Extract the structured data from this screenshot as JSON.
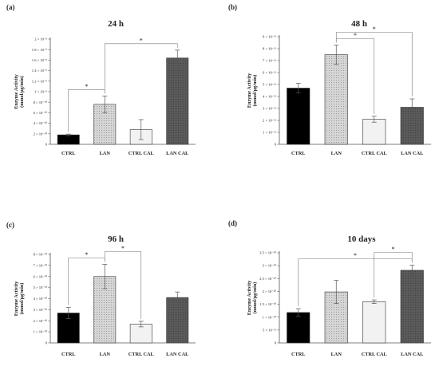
{
  "chart_data": [
    {
      "type": "bar",
      "panel_label": "(a)",
      "title": "24 h",
      "ylabel_line1": "Enzyme Activity",
      "ylabel_line2": "(mmol/µg/min)",
      "categories": [
        "CTRL",
        "LAN",
        "CTRL CAL",
        "LAN CAL"
      ],
      "values": [
        1.8e-10,
        7.6e-10,
        2.8e-10,
        1.64e-09
      ],
      "errors": [
        1.5e-11,
        1.6e-10,
        1.9e-10,
        1.5e-10
      ],
      "ylim": [
        0,
        2e-09
      ],
      "yticks": [
        0,
        2e-10,
        4e-10,
        6e-10,
        8e-10,
        1e-09,
        1.2e-09,
        1.4e-09,
        1.6e-09,
        1.8e-09,
        2e-09
      ],
      "ytick_labels": [
        "0",
        "2 × 10⁻¹⁰",
        "4 × 10⁻¹⁰",
        "6 × 10⁻¹⁰",
        "8 × 10⁻¹⁰",
        "1 × 10⁻⁹",
        "1.2 × 10⁻⁹",
        "1.4 × 10⁻⁹",
        "1.6 × 10⁻⁹",
        "1.8 × 10⁻⁹",
        "2 × 10⁻⁹"
      ],
      "significance": [
        {
          "from": 0,
          "to": 1,
          "label": "*"
        },
        {
          "from": 1,
          "to": 3,
          "label": "*"
        }
      ]
    },
    {
      "type": "bar",
      "panel_label": "(b)",
      "title": "48 h",
      "ylabel_line1": "Enzyme Activity",
      "ylabel_line2": "(mmol/µg/min)",
      "categories": [
        "CTRL",
        "LAN",
        "CTRL CAL",
        "LAN CAL"
      ],
      "values": [
        4.7e-11,
        7.5e-11,
        2.1e-11,
        3.1e-11
      ],
      "errors": [
        4e-12,
        8e-12,
        2.5e-12,
        7e-12
      ],
      "ylim": [
        0,
        9e-11
      ],
      "yticks": [
        0,
        1e-11,
        2e-11,
        3e-11,
        4e-11,
        5e-11,
        6e-11,
        7e-11,
        8e-11,
        9e-11
      ],
      "ytick_labels": [
        "0",
        "1 × 10⁻¹¹",
        "2 × 10⁻¹¹",
        "3 × 10⁻¹¹",
        "4 × 10⁻¹¹",
        "5 × 10⁻¹¹",
        "6 × 10⁻¹¹",
        "7 × 10⁻¹¹",
        "8 × 10⁻¹¹",
        "9 × 10⁻¹¹"
      ],
      "significance": [
        {
          "from": 1,
          "to": 2,
          "label": "*"
        },
        {
          "from": 1,
          "to": 3,
          "label": "*"
        }
      ]
    },
    {
      "type": "bar",
      "panel_label": "(c)",
      "title": "96 h",
      "ylabel_line1": "Enzyme Activity",
      "ylabel_line2": "(mmol/µg/min)",
      "categories": [
        "CTRL",
        "LAN",
        "CTRL CAL",
        "LAN CAL"
      ],
      "values": [
        2.7e-10,
        6e-10,
        1.7e-10,
        4.1e-10
      ],
      "errors": [
        5e-11,
        1.1e-10,
        2.5e-11,
        5e-11
      ],
      "ylim": [
        0,
        8e-10
      ],
      "yticks": [
        0,
        1e-10,
        2e-10,
        3e-10,
        4e-10,
        5e-10,
        6e-10,
        7e-10,
        8e-10
      ],
      "ytick_labels": [
        "0",
        "1 × 10⁻¹⁰",
        "2 × 10⁻¹⁰",
        "3 × 10⁻¹⁰",
        "4 × 10⁻¹⁰",
        "5 × 10⁻¹⁰",
        "6 × 10⁻¹⁰",
        "7 × 10⁻¹⁰",
        "8 × 10⁻¹⁰"
      ],
      "significance": [
        {
          "from": 0,
          "to": 1,
          "label": "*"
        },
        {
          "from": 1,
          "to": 2,
          "label": "*"
        }
      ]
    },
    {
      "type": "bar",
      "panel_label": "(d)",
      "title": "10 days",
      "ylabel_line1": "Enzyme Activity",
      "ylabel_line2": "(mmol/µg/min)",
      "categories": [
        "CTRL",
        "LAN",
        "CTRL CAL",
        "LAN CAL"
      ],
      "values": [
        1.18e-10,
        1.98e-10,
        1.6e-10,
        2.82e-10
      ],
      "errors": [
        1.5e-11,
        4.5e-11,
        7e-12,
        2e-11
      ],
      "ylim": [
        0,
        3.5e-10
      ],
      "yticks": [
        0,
        5e-11,
        1e-10,
        1.5e-10,
        2e-10,
        2.5e-10,
        3e-10,
        3.5e-10
      ],
      "ytick_labels": [
        "0",
        "5 × 10⁻¹¹",
        "1 × 10⁻¹⁰",
        "1.5 × 10⁻¹⁰",
        "2 × 10⁻¹⁰",
        "2.5 × 10⁻¹⁰",
        "3 × 10⁻¹⁰",
        "3.5 × 10⁻¹⁰"
      ],
      "significance": [
        {
          "from": 0,
          "to": 3,
          "label": "*"
        },
        {
          "from": 2,
          "to": 3,
          "label": "*"
        }
      ]
    }
  ],
  "bar_styles": [
    {
      "fill": "#000000",
      "pattern": "none"
    },
    {
      "fill": "#d0d0d0",
      "pattern": "dots"
    },
    {
      "fill": "#f2f2f2",
      "pattern": "none"
    },
    {
      "fill": "#595959",
      "pattern": "dots"
    }
  ]
}
